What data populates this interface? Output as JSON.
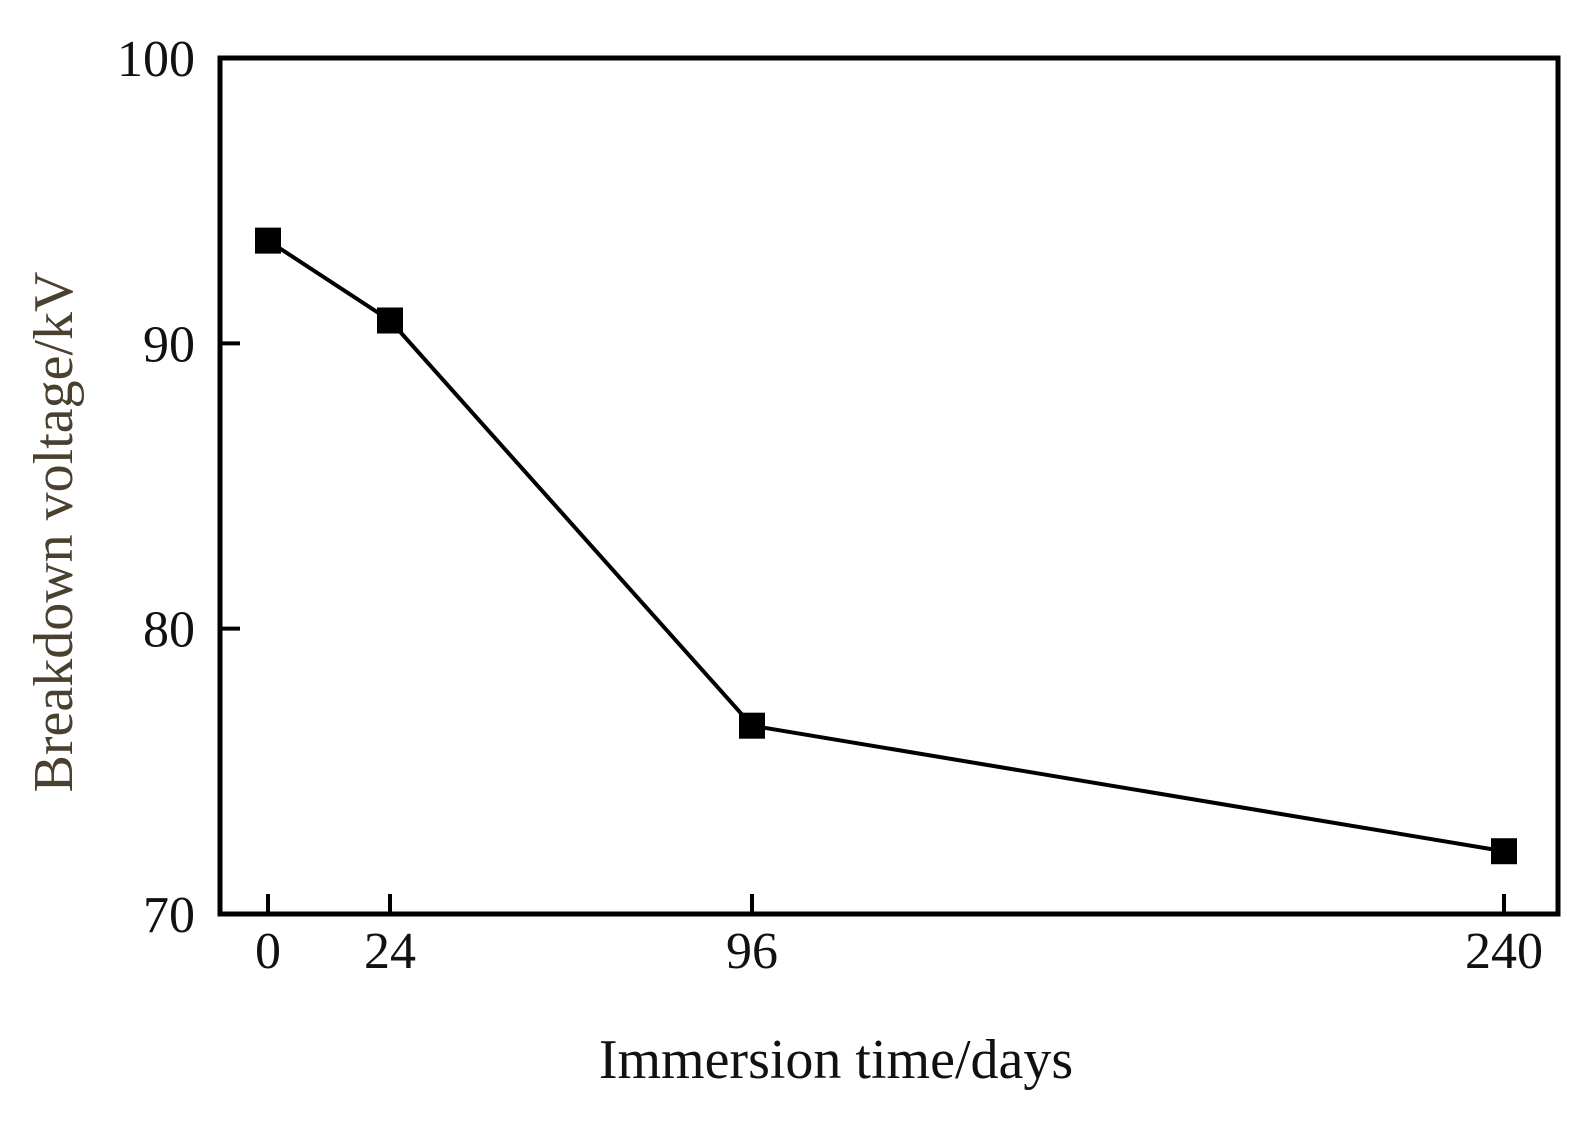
{
  "chart_data": {
    "type": "line",
    "title": "",
    "xlabel": "Immersion time/days",
    "ylabel": "Breakdown voltage/kV",
    "x": [
      0,
      24,
      96,
      240
    ],
    "series": [
      {
        "values": [
          93.6,
          90.8,
          76.6,
          72.2
        ]
      }
    ],
    "x_ticks": [
      "0",
      "24",
      "96",
      "240"
    ],
    "y_ticks": [
      "70",
      "80",
      "90",
      "100"
    ],
    "ylim": [
      70,
      100
    ],
    "grid": false,
    "legend": "none",
    "colors": {
      "line": "#000000",
      "marker": "#000000",
      "axis": "#000000",
      "ylabel": "#4a4030"
    }
  }
}
